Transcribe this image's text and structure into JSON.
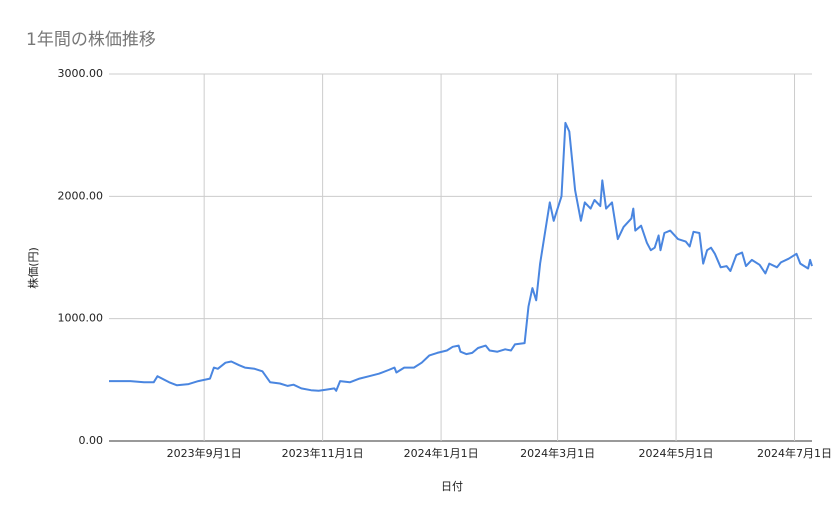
{
  "chart_data": {
    "type": "line",
    "title": "1年間の株価推移",
    "x_label": "日付",
    "y_label": "株価(円)",
    "x": [
      "2023-07-14",
      "2023-07-25",
      "2023-08-01",
      "2023-08-06",
      "2023-08-08",
      "2023-08-14",
      "2023-08-18",
      "2023-08-24",
      "2023-08-29",
      "2023-09-04",
      "2023-09-06",
      "2023-09-08",
      "2023-09-12",
      "2023-09-15",
      "2023-09-19",
      "2023-09-22",
      "2023-09-27",
      "2023-10-01",
      "2023-10-05",
      "2023-10-10",
      "2023-10-14",
      "2023-10-17",
      "2023-10-21",
      "2023-10-26",
      "2023-10-30",
      "2023-11-03",
      "2023-11-07",
      "2023-11-08",
      "2023-11-10",
      "2023-11-15",
      "2023-11-20",
      "2023-11-25",
      "2023-11-30",
      "2023-12-05",
      "2023-12-08",
      "2023-12-09",
      "2023-12-13",
      "2023-12-18",
      "2023-12-22",
      "2023-12-26",
      "2023-12-30",
      "2024-01-04",
      "2024-01-07",
      "2024-01-10",
      "2024-01-11",
      "2024-01-14",
      "2024-01-17",
      "2024-01-20",
      "2024-01-24",
      "2024-01-26",
      "2024-01-30",
      "2024-02-03",
      "2024-02-06",
      "2024-02-08",
      "2024-02-13",
      "2024-02-15",
      "2024-02-17",
      "2024-02-19",
      "2024-02-21",
      "2024-02-24",
      "2024-02-26",
      "2024-02-28",
      "2024-03-03",
      "2024-03-05",
      "2024-03-07",
      "2024-03-10",
      "2024-03-13",
      "2024-03-15",
      "2024-03-18",
      "2024-03-20",
      "2024-03-23",
      "2024-03-24",
      "2024-03-26",
      "2024-03-29",
      "2024-04-01",
      "2024-04-04",
      "2024-04-08",
      "2024-04-09",
      "2024-04-10",
      "2024-04-13",
      "2024-04-16",
      "2024-04-18",
      "2024-04-20",
      "2024-04-22",
      "2024-04-23",
      "2024-04-25",
      "2024-04-28",
      "2024-05-02",
      "2024-05-06",
      "2024-05-08",
      "2024-05-10",
      "2024-05-13",
      "2024-05-15",
      "2024-05-17",
      "2024-05-19",
      "2024-05-21",
      "2024-05-24",
      "2024-05-27",
      "2024-05-29",
      "2024-06-01",
      "2024-06-04",
      "2024-06-06",
      "2024-06-09",
      "2024-06-13",
      "2024-06-16",
      "2024-06-18",
      "2024-06-22",
      "2024-06-24",
      "2024-06-28",
      "2024-07-02",
      "2024-07-04",
      "2024-07-08",
      "2024-07-09",
      "2024-07-10"
    ],
    "series": [
      {
        "name": "株価",
        "color": "#4a86e0",
        "values": [
          490,
          490,
          480,
          480,
          530,
          480,
          455,
          465,
          490,
          510,
          600,
          590,
          640,
          650,
          620,
          600,
          590,
          570,
          480,
          470,
          450,
          460,
          430,
          415,
          410,
          420,
          430,
          410,
          490,
          480,
          510,
          530,
          550,
          580,
          600,
          560,
          600,
          600,
          640,
          700,
          720,
          740,
          770,
          780,
          730,
          710,
          720,
          760,
          780,
          740,
          730,
          750,
          740,
          790,
          800,
          1100,
          1250,
          1150,
          1450,
          1750,
          1950,
          1800,
          2000,
          2600,
          2530,
          2050,
          1800,
          1950,
          1900,
          1970,
          1920,
          2130,
          1900,
          1950,
          1650,
          1750,
          1820,
          1900,
          1720,
          1760,
          1620,
          1560,
          1580,
          1680,
          1560,
          1700,
          1720,
          1650,
          1630,
          1590,
          1710,
          1700,
          1450,
          1560,
          1580,
          1530,
          1420,
          1430,
          1390,
          1520,
          1540,
          1430,
          1480,
          1440,
          1370,
          1450,
          1420,
          1460,
          1490,
          1530,
          1450,
          1410,
          1480,
          1430
        ]
      }
    ],
    "xlim": [
      "2023-07-14",
      "2024-07-10"
    ],
    "xticks": [
      {
        "value": "2023-09-01",
        "label": "2023年9月1日"
      },
      {
        "value": "2023-11-01",
        "label": "2023年11月1日"
      },
      {
        "value": "2024-01-01",
        "label": "2024年1月1日"
      },
      {
        "value": "2024-03-01",
        "label": "2024年3月1日"
      },
      {
        "value": "2024-05-01",
        "label": "2024年5月1日"
      },
      {
        "value": "2024-07-01",
        "label": "2024年7月1日"
      }
    ],
    "ylim": [
      0,
      3000
    ],
    "yticks": [
      {
        "value": 0,
        "label": "0.00"
      },
      {
        "value": 1000,
        "label": "1000.00"
      },
      {
        "value": 2000,
        "label": "2000.00"
      },
      {
        "value": 3000,
        "label": "3000.00"
      }
    ],
    "grid": true
  }
}
